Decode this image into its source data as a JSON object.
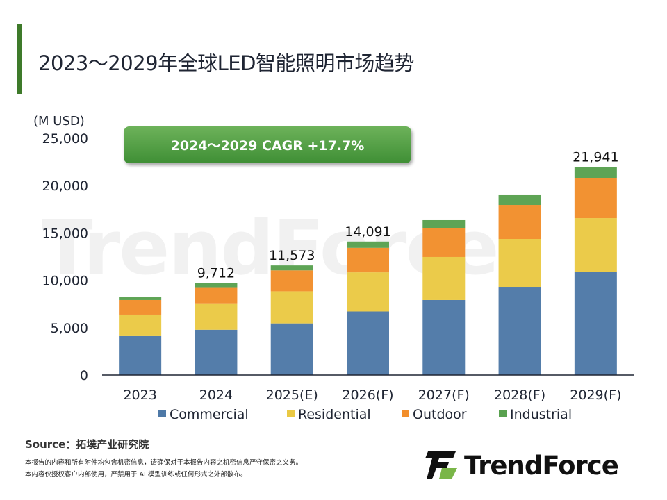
{
  "title": "2023～2029年全球LED智能照明市场趋势",
  "cagr_label": "2024～2029 CAGR +17.7%",
  "source": "Source：拓墣产业研究院",
  "notes": [
    "本报告的内容和所有附件均包含机密信息，请确保对于本报告内容之机密信息严守保密之义务。",
    "本内容仅授权客户内部使用，严禁用于 AI 模型训练或任何形式之外部散布。"
  ],
  "brand": "TrendForce",
  "chart_data": {
    "type": "bar",
    "stacked": true,
    "ylabel": "(M USD)",
    "ylim": [
      0,
      25000
    ],
    "yticks": [
      "0",
      "5,000",
      "10,000",
      "15,000",
      "20,000",
      "25,000"
    ],
    "ytick_values": [
      0,
      5000,
      10000,
      15000,
      20000,
      25000
    ],
    "grid": false,
    "legend_position": "bottom",
    "categories": [
      "2023",
      "2024",
      "2025(E)",
      "2026(F)",
      "2027(F)",
      "2028(F)",
      "2029(F)"
    ],
    "series": [
      {
        "name": "Commercial",
        "color": "#4e79a7",
        "values": [
          4110,
          4780,
          5450,
          6710,
          7920,
          9310,
          10897
        ]
      },
      {
        "name": "Residential",
        "color": "#eac944",
        "values": [
          2270,
          2720,
          3390,
          4130,
          4545,
          5060,
          5669
        ]
      },
      {
        "name": "Outdoor",
        "color": "#f28e2b",
        "values": [
          1540,
          1770,
          2210,
          2590,
          3005,
          3590,
          4197
        ]
      },
      {
        "name": "Industrial",
        "color": "#59a14f",
        "values": [
          290,
          442,
          523,
          661,
          880,
          1030,
          1178
        ]
      }
    ],
    "total_labels": [
      "",
      "9,712",
      "11,573",
      "14,091",
      "",
      "",
      "21,941"
    ]
  }
}
